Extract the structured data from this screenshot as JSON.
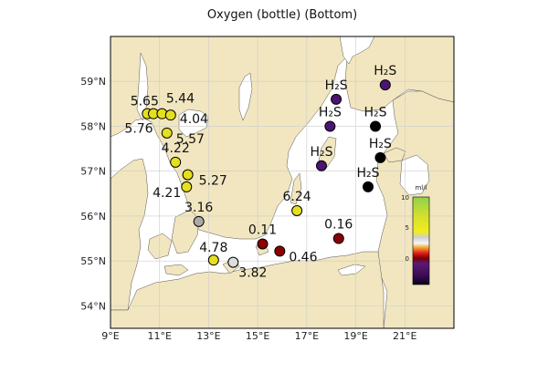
{
  "title": "Oxygen (bottle) (Bottom)",
  "colors": {
    "land": "#f1e6bf",
    "sea": "#ffffff",
    "grid": "#cccccc",
    "frame": "#000000"
  },
  "axes": {
    "x_ticks": [
      "9°E",
      "11°E",
      "13°E",
      "15°E",
      "17°E",
      "19°E",
      "21°E"
    ],
    "y_ticks": [
      "54°N",
      "55°N",
      "56°N",
      "57°N",
      "58°N",
      "59°N"
    ]
  },
  "colorbar": {
    "unit": "ml/l",
    "ticks": [
      "10",
      "5",
      "0"
    ]
  },
  "stations": [
    {
      "lon": 10.5,
      "lat": 58.28,
      "label": "5.65",
      "color": "#e5e01e"
    },
    {
      "lon": 10.75,
      "lat": 58.28,
      "label": "5.76",
      "color": "#e5e01e"
    },
    {
      "lon": 11.1,
      "lat": 58.28,
      "label": "5.44",
      "color": "#e5e01e"
    },
    {
      "lon": 11.45,
      "lat": 58.25,
      "label": "4.04",
      "color": "#e5e01e"
    },
    {
      "lon": 11.3,
      "lat": 57.85,
      "label": "5.57",
      "color": "#e5e01e"
    },
    {
      "lon": 11.65,
      "lat": 57.2,
      "label": "4.22",
      "color": "#e5e01e"
    },
    {
      "lon": 12.15,
      "lat": 56.92,
      "label": "5.27",
      "color": "#e5e01e"
    },
    {
      "lon": 12.1,
      "lat": 56.65,
      "label": "4.21",
      "color": "#e5e01e"
    },
    {
      "lon": 12.6,
      "lat": 55.88,
      "label": "3.16",
      "color": "#aaaaaa"
    },
    {
      "lon": 13.2,
      "lat": 55.02,
      "label": "4.78",
      "color": "#e5e01e"
    },
    {
      "lon": 14.0,
      "lat": 54.97,
      "label": "3.82",
      "color": "#dddddd"
    },
    {
      "lon": 15.2,
      "lat": 55.38,
      "label": "0.11",
      "color": "#8b0000"
    },
    {
      "lon": 15.9,
      "lat": 55.22,
      "label": "0.46",
      "color": "#8b0000"
    },
    {
      "lon": 16.6,
      "lat": 56.12,
      "label": "6.24",
      "color": "#e5e01e"
    },
    {
      "lon": 18.3,
      "lat": 55.5,
      "label": "0.16",
      "color": "#8b0000"
    },
    {
      "lon": 17.6,
      "lat": 57.12,
      "label": "H₂S",
      "color": "#4a1470"
    },
    {
      "lon": 17.95,
      "lat": 58.0,
      "label": "H₂S",
      "color": "#4a1470"
    },
    {
      "lon": 18.2,
      "lat": 58.6,
      "label": "H₂S",
      "color": "#4a1470"
    },
    {
      "lon": 20.2,
      "lat": 58.92,
      "label": "H₂S",
      "color": "#4a1470"
    },
    {
      "lon": 19.8,
      "lat": 58.0,
      "label": "H₂S",
      "color": "#000000"
    },
    {
      "lon": 20.0,
      "lat": 57.3,
      "label": "H₂S",
      "color": "#000000"
    },
    {
      "lon": 19.5,
      "lat": 56.65,
      "label": "H₂S",
      "color": "#000000"
    }
  ]
}
